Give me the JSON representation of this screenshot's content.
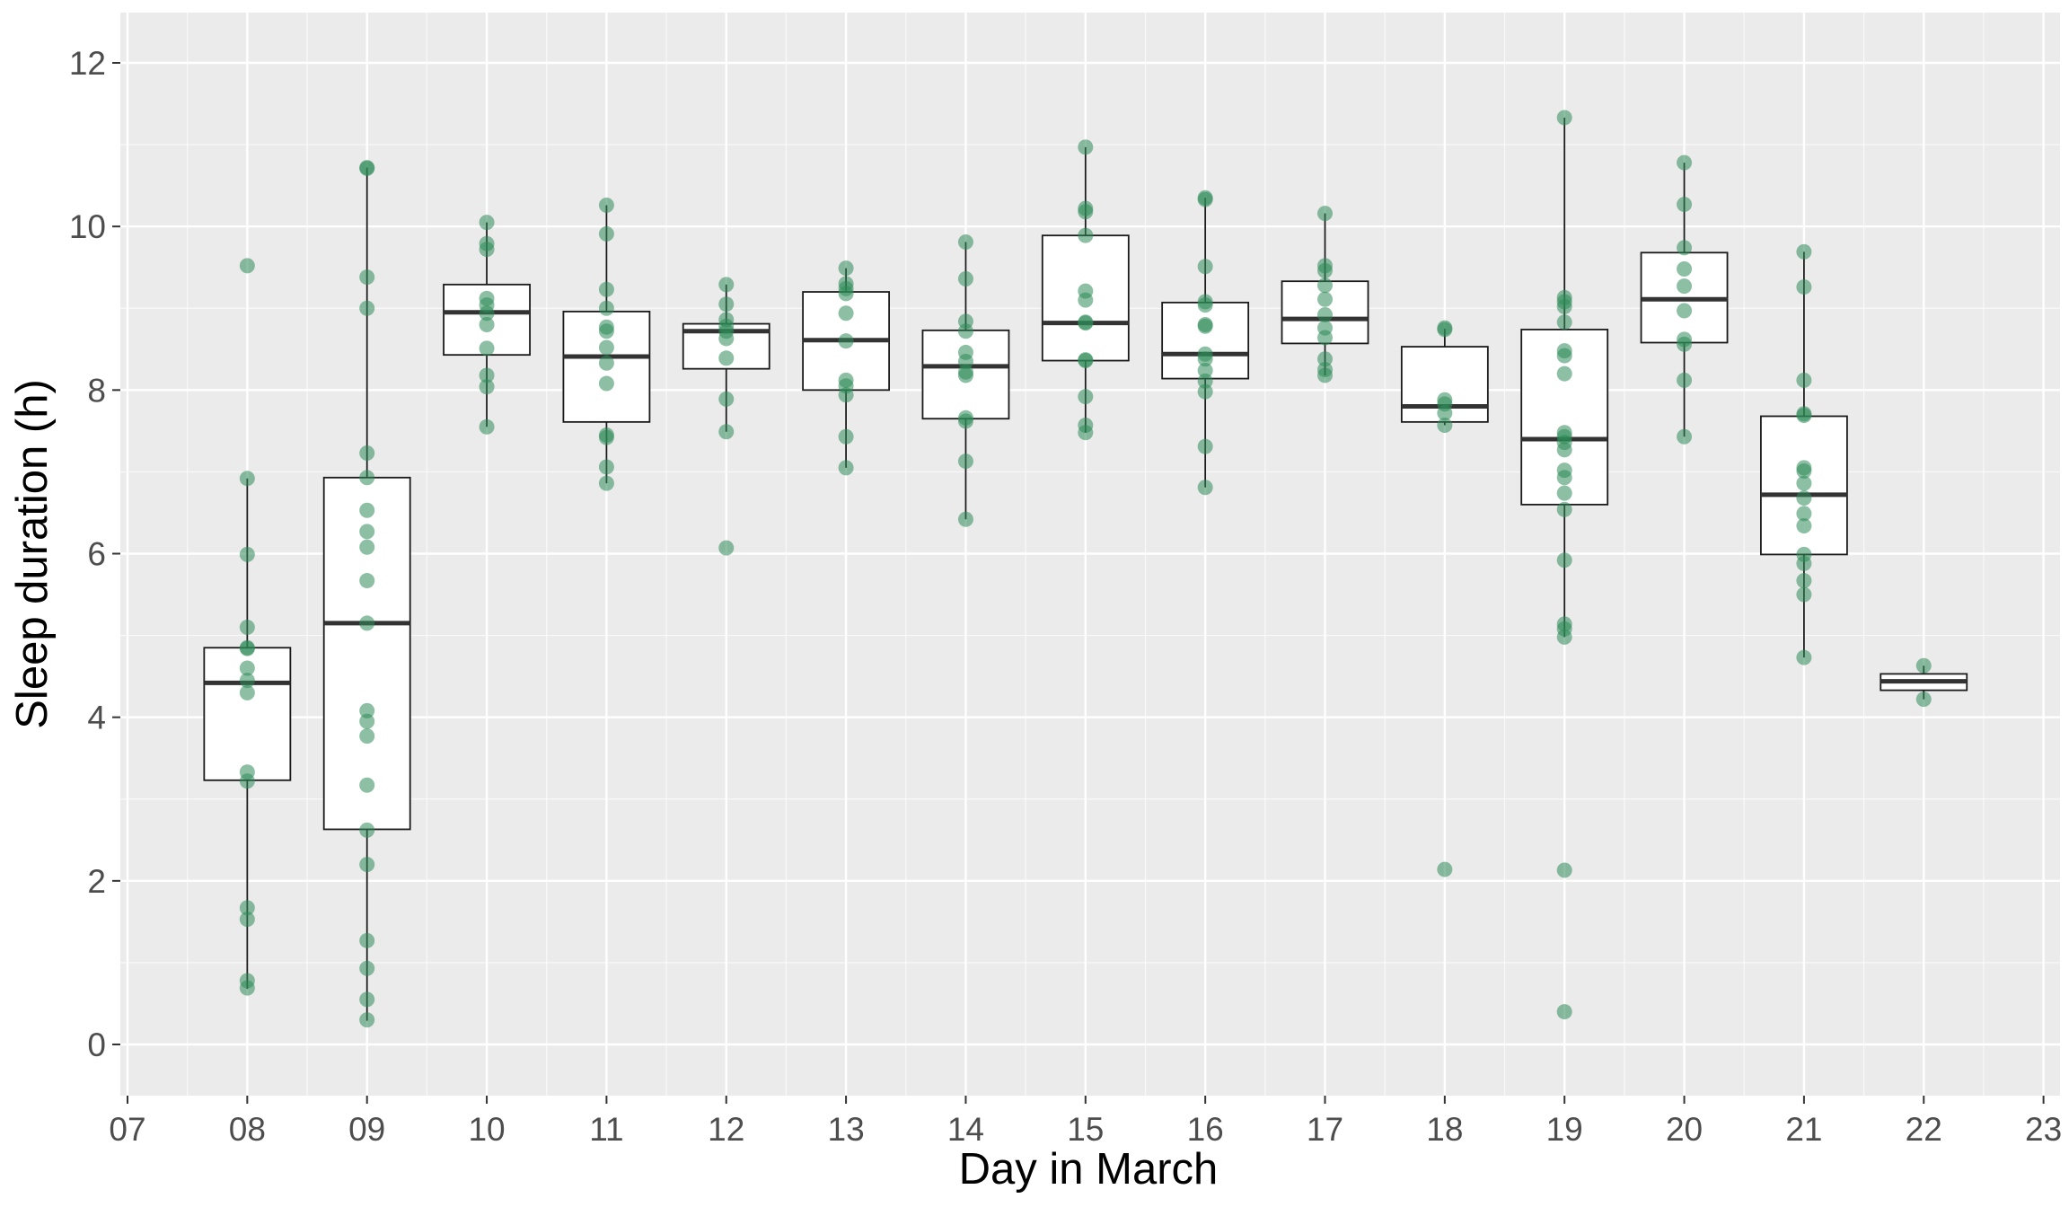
{
  "chart_data": {
    "type": "box",
    "xlabel": "Day in March",
    "ylabel": "Sleep duration (h)",
    "x_tick_labels": [
      "07",
      "08",
      "09",
      "10",
      "11",
      "12",
      "13",
      "14",
      "15",
      "16",
      "17",
      "18",
      "19",
      "20",
      "21",
      "22",
      "23"
    ],
    "x_range": [
      7,
      23
    ],
    "y_ticks": [
      0,
      2,
      4,
      6,
      8,
      10,
      12
    ],
    "ylim": [
      -0.6,
      12.6
    ],
    "grid": true,
    "colors": {
      "panel": "#EBEBEB",
      "grid": "#FFFFFF",
      "point": "#2E8B57",
      "box_fill": "#FFFFFF",
      "box_line": "#1A1A1A",
      "median": "#333333"
    },
    "boxes": [
      {
        "day": 8,
        "whisker_low": 0.68,
        "q1": 3.23,
        "median": 4.42,
        "q3": 4.85,
        "whisker_high": 6.92
      },
      {
        "day": 9,
        "whisker_low": 0.29,
        "q1": 2.63,
        "median": 5.15,
        "q3": 6.93,
        "whisker_high": 10.72
      },
      {
        "day": 10,
        "whisker_low": 7.55,
        "q1": 8.43,
        "median": 8.95,
        "q3": 9.29,
        "whisker_high": 10.05
      },
      {
        "day": 11,
        "whisker_low": 6.86,
        "q1": 7.61,
        "median": 8.41,
        "q3": 8.96,
        "whisker_high": 10.26
      },
      {
        "day": 12,
        "whisker_low": 7.49,
        "q1": 8.26,
        "median": 8.72,
        "q3": 8.81,
        "whisker_high": 9.29
      },
      {
        "day": 13,
        "whisker_low": 7.05,
        "q1": 8.0,
        "median": 8.61,
        "q3": 9.2,
        "whisker_high": 9.49
      },
      {
        "day": 14,
        "whisker_low": 6.42,
        "q1": 7.65,
        "median": 8.29,
        "q3": 8.73,
        "whisker_high": 9.81
      },
      {
        "day": 15,
        "whisker_low": 7.48,
        "q1": 8.36,
        "median": 8.82,
        "q3": 9.89,
        "whisker_high": 10.97
      },
      {
        "day": 16,
        "whisker_low": 6.81,
        "q1": 8.14,
        "median": 8.44,
        "q3": 9.07,
        "whisker_high": 10.35
      },
      {
        "day": 17,
        "whisker_low": 8.18,
        "q1": 8.57,
        "median": 8.87,
        "q3": 9.33,
        "whisker_high": 10.16
      },
      {
        "day": 18,
        "whisker_low": 7.57,
        "q1": 7.61,
        "median": 7.8,
        "q3": 8.53,
        "whisker_high": 8.75
      },
      {
        "day": 19,
        "whisker_low": 4.98,
        "q1": 6.6,
        "median": 7.4,
        "q3": 8.74,
        "whisker_high": 11.33
      },
      {
        "day": 20,
        "whisker_low": 7.43,
        "q1": 8.58,
        "median": 9.11,
        "q3": 9.68,
        "whisker_high": 10.78
      },
      {
        "day": 21,
        "whisker_low": 4.73,
        "q1": 5.99,
        "median": 6.72,
        "q3": 7.68,
        "whisker_high": 9.69
      },
      {
        "day": 22,
        "whisker_low": 4.22,
        "q1": 4.33,
        "median": 4.44,
        "q3": 4.53,
        "whisker_high": 4.63
      }
    ],
    "points": [
      {
        "day": 8,
        "values": [
          9.52,
          6.92,
          5.99,
          5.1,
          4.85,
          4.84,
          4.6,
          4.45,
          4.3,
          3.33,
          3.22,
          1.67,
          1.53,
          0.78,
          0.69
        ]
      },
      {
        "day": 9,
        "values": [
          10.72,
          10.71,
          9.38,
          9.0,
          7.23,
          6.93,
          6.53,
          6.27,
          6.08,
          5.67,
          5.15,
          4.08,
          3.95,
          3.77,
          3.17,
          2.62,
          2.2,
          1.27,
          0.93,
          0.55,
          0.3
        ]
      },
      {
        "day": 10,
        "values": [
          10.05,
          9.79,
          9.72,
          9.12,
          9.04,
          8.94,
          8.8,
          8.51,
          8.18,
          8.04,
          7.55
        ]
      },
      {
        "day": 11,
        "values": [
          10.26,
          9.91,
          9.23,
          9.0,
          8.77,
          8.72,
          8.52,
          8.33,
          8.08,
          7.45,
          7.42,
          7.06,
          6.86
        ]
      },
      {
        "day": 12,
        "values": [
          9.29,
          9.05,
          8.86,
          8.78,
          8.72,
          8.63,
          8.39,
          7.89,
          7.49,
          6.07
        ]
      },
      {
        "day": 13,
        "values": [
          9.49,
          9.3,
          9.24,
          9.18,
          8.94,
          8.6,
          8.12,
          8.05,
          7.94,
          7.43,
          7.05
        ]
      },
      {
        "day": 14,
        "values": [
          9.81,
          9.36,
          8.84,
          8.72,
          8.46,
          8.35,
          8.22,
          8.18,
          7.66,
          7.62,
          7.13,
          6.42
        ]
      },
      {
        "day": 15,
        "values": [
          10.97,
          10.22,
          10.18,
          9.89,
          9.21,
          9.1,
          8.83,
          8.82,
          8.37,
          8.36,
          7.92,
          7.57,
          7.48
        ]
      },
      {
        "day": 16,
        "values": [
          10.35,
          10.33,
          9.51,
          9.08,
          9.04,
          8.8,
          8.78,
          8.44,
          8.38,
          8.24,
          8.11,
          7.98,
          7.31,
          6.81
        ]
      },
      {
        "day": 17,
        "values": [
          10.16,
          9.52,
          9.46,
          9.28,
          9.11,
          8.92,
          8.76,
          8.64,
          8.38,
          8.25,
          8.18
        ]
      },
      {
        "day": 18,
        "values": [
          8.76,
          8.74,
          7.88,
          7.83,
          7.72,
          7.57,
          2.14
        ]
      },
      {
        "day": 19,
        "values": [
          11.33,
          9.13,
          9.08,
          9.02,
          8.83,
          8.48,
          8.42,
          8.2,
          7.48,
          7.43,
          7.36,
          7.27,
          7.02,
          6.93,
          6.74,
          6.54,
          5.92,
          5.14,
          5.08,
          4.98,
          2.13,
          0.4
        ]
      },
      {
        "day": 20,
        "values": [
          10.78,
          10.27,
          9.74,
          9.48,
          9.27,
          8.97,
          8.62,
          8.56,
          8.12,
          7.43
        ]
      },
      {
        "day": 21,
        "values": [
          9.69,
          9.26,
          8.12,
          7.71,
          7.69,
          7.05,
          7.01,
          6.86,
          6.68,
          6.49,
          6.34,
          5.99,
          5.88,
          5.67,
          5.5,
          4.73
        ]
      },
      {
        "day": 22,
        "values": [
          4.63,
          4.22
        ]
      }
    ]
  }
}
